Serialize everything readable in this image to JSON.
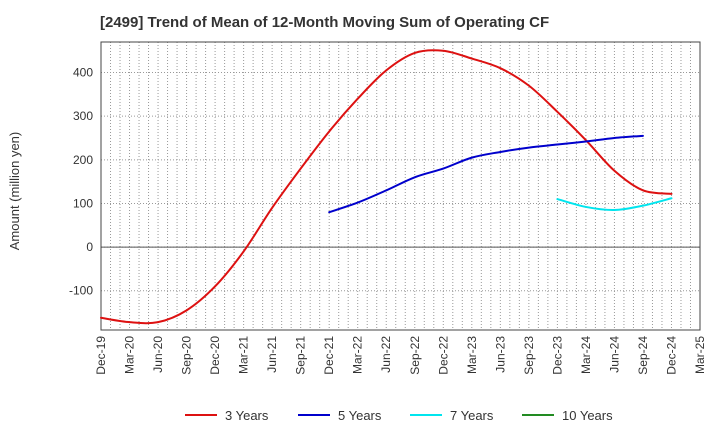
{
  "chart_data": {
    "type": "line",
    "title": "[2499]  Trend of Mean of 12-Month Moving Sum of Operating CF",
    "xlabel": "",
    "ylabel": "Amount (million yen)",
    "ylim": [
      -190,
      470
    ],
    "y_ticks": [
      400,
      300,
      200,
      100,
      0,
      -100
    ],
    "grid": true,
    "legend_position": "bottom",
    "categories": [
      "Dec-19",
      "Mar-20",
      "Jun-20",
      "Sep-20",
      "Dec-20",
      "Mar-21",
      "Jun-21",
      "Sep-21",
      "Dec-21",
      "Mar-22",
      "Jun-22",
      "Sep-22",
      "Dec-22",
      "Mar-23",
      "Jun-23",
      "Sep-23",
      "Dec-23",
      "Mar-24",
      "Jun-24",
      "Sep-24",
      "Dec-24",
      "Mar-25"
    ],
    "series": [
      {
        "name": "3 Years",
        "color": "#dd1111",
        "values": [
          -162,
          -172,
          -172,
          -145,
          -90,
          -10,
          90,
          180,
          265,
          340,
          405,
          445,
          450,
          432,
          410,
          370,
          310,
          245,
          175,
          130,
          122,
          null
        ]
      },
      {
        "name": "5 Years",
        "color": "#0000cc",
        "values": [
          null,
          null,
          null,
          null,
          null,
          null,
          null,
          null,
          80,
          102,
          130,
          160,
          180,
          205,
          218,
          228,
          235,
          242,
          250,
          255,
          null,
          null
        ]
      },
      {
        "name": "7 Years",
        "color": "#00e5ee",
        "values": [
          null,
          null,
          null,
          null,
          null,
          null,
          null,
          null,
          null,
          null,
          null,
          null,
          null,
          null,
          null,
          null,
          110,
          92,
          85,
          95,
          112,
          null
        ]
      },
      {
        "name": "10 Years",
        "color": "#228b22",
        "values": [
          null,
          null,
          null,
          null,
          null,
          null,
          null,
          null,
          null,
          null,
          null,
          null,
          null,
          null,
          null,
          null,
          null,
          null,
          null,
          null,
          null,
          null
        ]
      }
    ]
  }
}
